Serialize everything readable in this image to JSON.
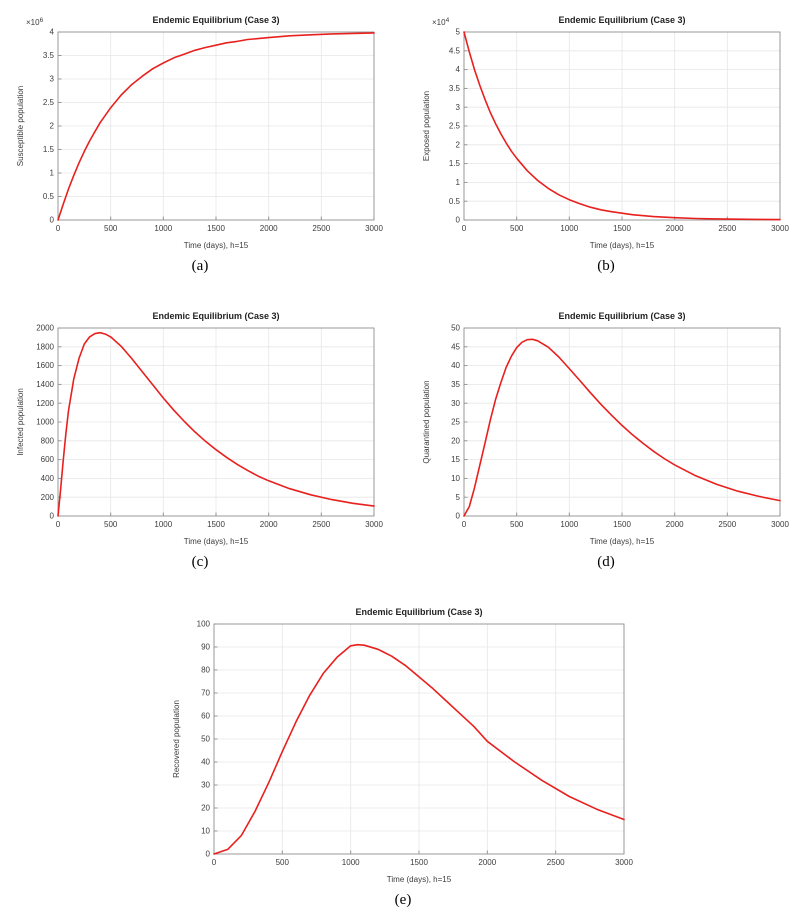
{
  "page": {
    "background": "#ffffff"
  },
  "style": {
    "line_color": "#e8201e",
    "grid_color": "#e6e6e6",
    "axis_color": "#8f8f8f",
    "text_color": "#3c3c3c"
  },
  "chart_data": [
    {
      "id": "a",
      "caption": "(a)",
      "type": "line",
      "title": "Endemic Equilibrium (Case 3)",
      "xlabel": "Time (days), h=15",
      "ylabel": "Susceptible population",
      "y_exponent": "6",
      "legend": null,
      "grid": true,
      "xlim": [
        0,
        3000
      ],
      "ylim": [
        0,
        4
      ],
      "xticks": [
        0,
        500,
        1000,
        1500,
        2000,
        2500,
        3000
      ],
      "yticks": [
        0,
        0.5,
        1,
        1.5,
        2,
        2.5,
        3,
        3.5,
        4
      ],
      "x": [
        0,
        50,
        100,
        150,
        200,
        250,
        300,
        350,
        400,
        450,
        500,
        600,
        700,
        800,
        900,
        1000,
        1100,
        1200,
        1300,
        1400,
        1500,
        1600,
        1700,
        1800,
        1900,
        2000,
        2200,
        2400,
        2600,
        2800,
        3000
      ],
      "y": [
        0,
        0.34,
        0.66,
        0.95,
        1.22,
        1.46,
        1.68,
        1.88,
        2.07,
        2.23,
        2.39,
        2.66,
        2.88,
        3.06,
        3.22,
        3.34,
        3.45,
        3.53,
        3.61,
        3.67,
        3.72,
        3.77,
        3.8,
        3.84,
        3.86,
        3.88,
        3.92,
        3.94,
        3.96,
        3.97,
        3.98
      ]
    },
    {
      "id": "b",
      "caption": "(b)",
      "type": "line",
      "title": "Endemic Equilibrium (Case 3)",
      "xlabel": "Time (days), h=15",
      "ylabel": "Exposed population",
      "y_exponent": "4",
      "legend": null,
      "grid": true,
      "xlim": [
        0,
        3000
      ],
      "ylim": [
        0,
        5
      ],
      "xticks": [
        0,
        500,
        1000,
        1500,
        2000,
        2500,
        3000
      ],
      "yticks": [
        0,
        0.5,
        1,
        1.5,
        2,
        2.5,
        3,
        3.5,
        4,
        4.5,
        5
      ],
      "x": [
        0,
        50,
        100,
        150,
        200,
        250,
        300,
        350,
        400,
        450,
        500,
        600,
        700,
        800,
        900,
        1000,
        1100,
        1200,
        1300,
        1400,
        1500,
        1600,
        1800,
        2000,
        2200,
        2400,
        2600,
        2800,
        3000
      ],
      "y": [
        5,
        4.47,
        4.0,
        3.58,
        3.2,
        2.86,
        2.56,
        2.29,
        2.05,
        1.83,
        1.64,
        1.31,
        1.05,
        0.84,
        0.67,
        0.54,
        0.43,
        0.34,
        0.27,
        0.22,
        0.18,
        0.14,
        0.09,
        0.06,
        0.04,
        0.03,
        0.02,
        0.015,
        0.01
      ]
    },
    {
      "id": "c",
      "caption": "(c)",
      "type": "line",
      "title": "Endemic Equilibrium (Case 3)",
      "xlabel": "Time (days), h=15",
      "ylabel": "Infected population",
      "y_exponent": null,
      "legend": null,
      "grid": true,
      "xlim": [
        0,
        3000
      ],
      "ylim": [
        0,
        2000
      ],
      "xticks": [
        0,
        500,
        1000,
        1500,
        2000,
        2500,
        3000
      ],
      "yticks": [
        0,
        200,
        400,
        600,
        800,
        1000,
        1200,
        1400,
        1600,
        1800,
        2000
      ],
      "x": [
        0,
        25,
        50,
        75,
        100,
        150,
        200,
        250,
        300,
        350,
        400,
        450,
        500,
        600,
        700,
        800,
        900,
        1000,
        1100,
        1200,
        1300,
        1400,
        1500,
        1600,
        1700,
        1800,
        1900,
        2000,
        2200,
        2400,
        2600,
        2800,
        3000
      ],
      "y": [
        0,
        280,
        600,
        880,
        1120,
        1460,
        1680,
        1830,
        1905,
        1940,
        1950,
        1935,
        1905,
        1805,
        1675,
        1535,
        1395,
        1255,
        1125,
        1005,
        895,
        795,
        705,
        625,
        550,
        485,
        425,
        375,
        290,
        225,
        175,
        135,
        105
      ]
    },
    {
      "id": "d",
      "caption": "(d)",
      "type": "line",
      "title": "Endemic Equilibrium (Case 3)",
      "xlabel": "Time (days), h=15",
      "ylabel": "Quarantined population",
      "y_exponent": null,
      "legend": null,
      "grid": true,
      "xlim": [
        0,
        3000
      ],
      "ylim": [
        0,
        50
      ],
      "xticks": [
        0,
        500,
        1000,
        1500,
        2000,
        2500,
        3000
      ],
      "yticks": [
        0,
        5,
        10,
        15,
        20,
        25,
        30,
        35,
        40,
        45,
        50
      ],
      "x": [
        0,
        50,
        100,
        150,
        200,
        250,
        300,
        350,
        400,
        450,
        500,
        550,
        600,
        650,
        700,
        800,
        900,
        1000,
        1100,
        1200,
        1300,
        1400,
        1500,
        1600,
        1700,
        1800,
        1900,
        2000,
        2200,
        2400,
        2600,
        2800,
        3000
      ],
      "y": [
        0,
        2.5,
        7.5,
        13.5,
        19.5,
        25.5,
        31,
        35.5,
        39.5,
        42.5,
        44.8,
        46.2,
        46.9,
        47.0,
        46.6,
        44.9,
        42.3,
        39.2,
        36,
        32.8,
        29.7,
        26.8,
        24.1,
        21.6,
        19.3,
        17.2,
        15.3,
        13.6,
        10.7,
        8.4,
        6.6,
        5.2,
        4.1
      ]
    },
    {
      "id": "e",
      "caption": "(e)",
      "type": "line",
      "title": "Endemic Equilibrium (Case 3)",
      "xlabel": "Time (days), h=15",
      "ylabel": "Recovered population",
      "y_exponent": null,
      "legend": null,
      "grid": true,
      "xlim": [
        0,
        3000
      ],
      "ylim": [
        0,
        100
      ],
      "xticks": [
        0,
        500,
        1000,
        1500,
        2000,
        2500,
        3000
      ],
      "yticks": [
        0,
        10,
        20,
        30,
        40,
        50,
        60,
        70,
        80,
        90,
        100
      ],
      "x": [
        0,
        100,
        200,
        300,
        400,
        500,
        600,
        700,
        800,
        900,
        1000,
        1050,
        1100,
        1200,
        1300,
        1400,
        1500,
        1600,
        1700,
        1800,
        1900,
        2000,
        2200,
        2400,
        2600,
        2800,
        3000
      ],
      "y": [
        0,
        2,
        8,
        18.5,
        31,
        44.5,
        57.5,
        69,
        78.5,
        85.5,
        90.5,
        91,
        90.8,
        89,
        86,
        82,
        77,
        72,
        66.5,
        61,
        55.5,
        49,
        40,
        32,
        25,
        19.5,
        15
      ]
    }
  ]
}
